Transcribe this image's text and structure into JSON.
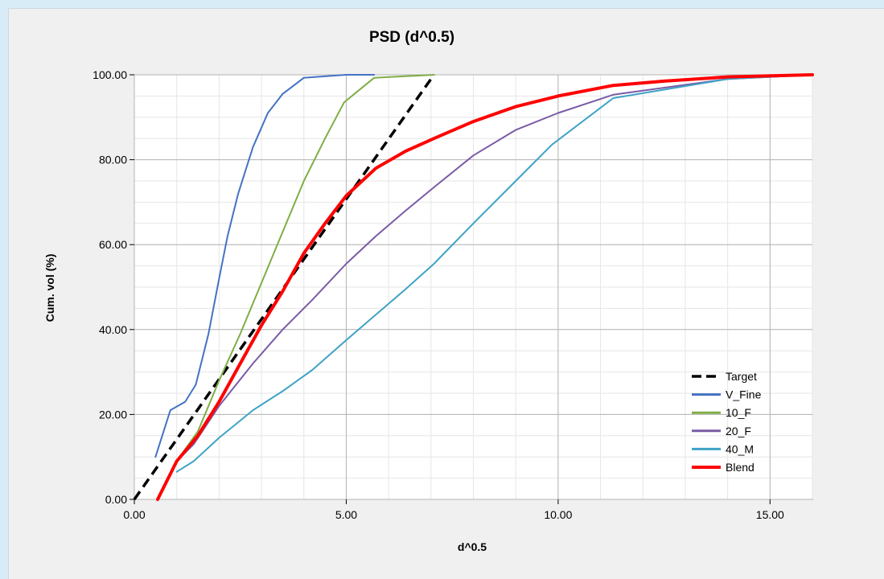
{
  "colors": {
    "window_background": "#d8ecf7",
    "panel_background": "#f0f0f0",
    "plot_background": "#ffffff",
    "major_grid": "#b4b4b4",
    "minor_grid": "#e6e6e6"
  },
  "chart_data": {
    "type": "line",
    "title": "PSD (d^0.5)",
    "xlabel": "d^0.5",
    "ylabel": "Cum. vol (%)",
    "xlim": [
      0,
      16
    ],
    "ylim": [
      0,
      100
    ],
    "x_ticks": [
      0,
      5,
      10,
      15
    ],
    "x_tick_labels": [
      "0.00",
      "5.00",
      "10.00",
      "15.00"
    ],
    "y_ticks": [
      0,
      20,
      40,
      60,
      80,
      100
    ],
    "y_tick_labels": [
      "0.00",
      "20.00",
      "40.00",
      "60.00",
      "80.00",
      "100.00"
    ],
    "grid": true,
    "minor_grid": true,
    "legend_position": "bottom-right",
    "series": [
      {
        "name": "Target",
        "color": "#000000",
        "dashed": true,
        "width": 3.5,
        "x": [
          0,
          7.07
        ],
        "y": [
          0,
          100
        ]
      },
      {
        "name": "V_Fine",
        "color": "#4472c4",
        "dashed": false,
        "width": 2,
        "x": [
          0.5,
          0.85,
          1.2,
          1.45,
          1.75,
          2.0,
          2.2,
          2.45,
          2.8,
          3.15,
          3.5,
          4.0,
          5.0,
          5.66
        ],
        "y": [
          10,
          21,
          23,
          27,
          39,
          52,
          62,
          72,
          83,
          91,
          95.5,
          99.3,
          100,
          100
        ]
      },
      {
        "name": "10_F",
        "color": "#7fad47",
        "dashed": false,
        "width": 2,
        "x": [
          1.0,
          1.5,
          2.0,
          2.5,
          3.0,
          3.5,
          4.0,
          4.5,
          4.95,
          5.66,
          7.07
        ],
        "y": [
          9,
          16,
          28,
          39,
          51,
          63,
          75,
          85,
          93.5,
          99.3,
          100
        ]
      },
      {
        "name": "20_F",
        "color": "#7a5ba6",
        "dashed": false,
        "width": 2,
        "x": [
          1.0,
          1.4,
          2.0,
          2.8,
          3.5,
          4.2,
          5.0,
          5.7,
          6.4,
          7.07,
          8.0,
          9.0,
          10.0,
          11.3,
          14.0,
          16.0
        ],
        "y": [
          9,
          13,
          22,
          32,
          40,
          47,
          55.5,
          62,
          68,
          73.5,
          81,
          87,
          91,
          95.3,
          99,
          100
        ]
      },
      {
        "name": "40_M",
        "color": "#3ea3c6",
        "dashed": false,
        "width": 2,
        "x": [
          1.0,
          1.4,
          2.0,
          2.8,
          3.5,
          4.2,
          5.0,
          5.7,
          6.4,
          7.07,
          8.0,
          9.0,
          9.85,
          11.3,
          14.0,
          16.0
        ],
        "y": [
          6.5,
          9,
          14.5,
          21,
          25.5,
          30.5,
          37.5,
          43.5,
          49.5,
          55.5,
          65,
          75,
          83.5,
          94.5,
          99,
          100
        ]
      },
      {
        "name": "Blend",
        "color": "#ff0000",
        "dashed": false,
        "width": 4,
        "x": [
          0.55,
          1.0,
          1.5,
          2.0,
          2.5,
          3.0,
          3.5,
          4.0,
          4.5,
          5.0,
          5.7,
          6.4,
          7.07,
          8.0,
          9.0,
          10.0,
          11.3,
          12.5,
          14.0,
          16.0
        ],
        "y": [
          0,
          9,
          15,
          23,
          32,
          41,
          49,
          58,
          65,
          71.5,
          78,
          82,
          85,
          89,
          92.5,
          95,
          97.5,
          98.5,
          99.5,
          100
        ]
      }
    ]
  }
}
